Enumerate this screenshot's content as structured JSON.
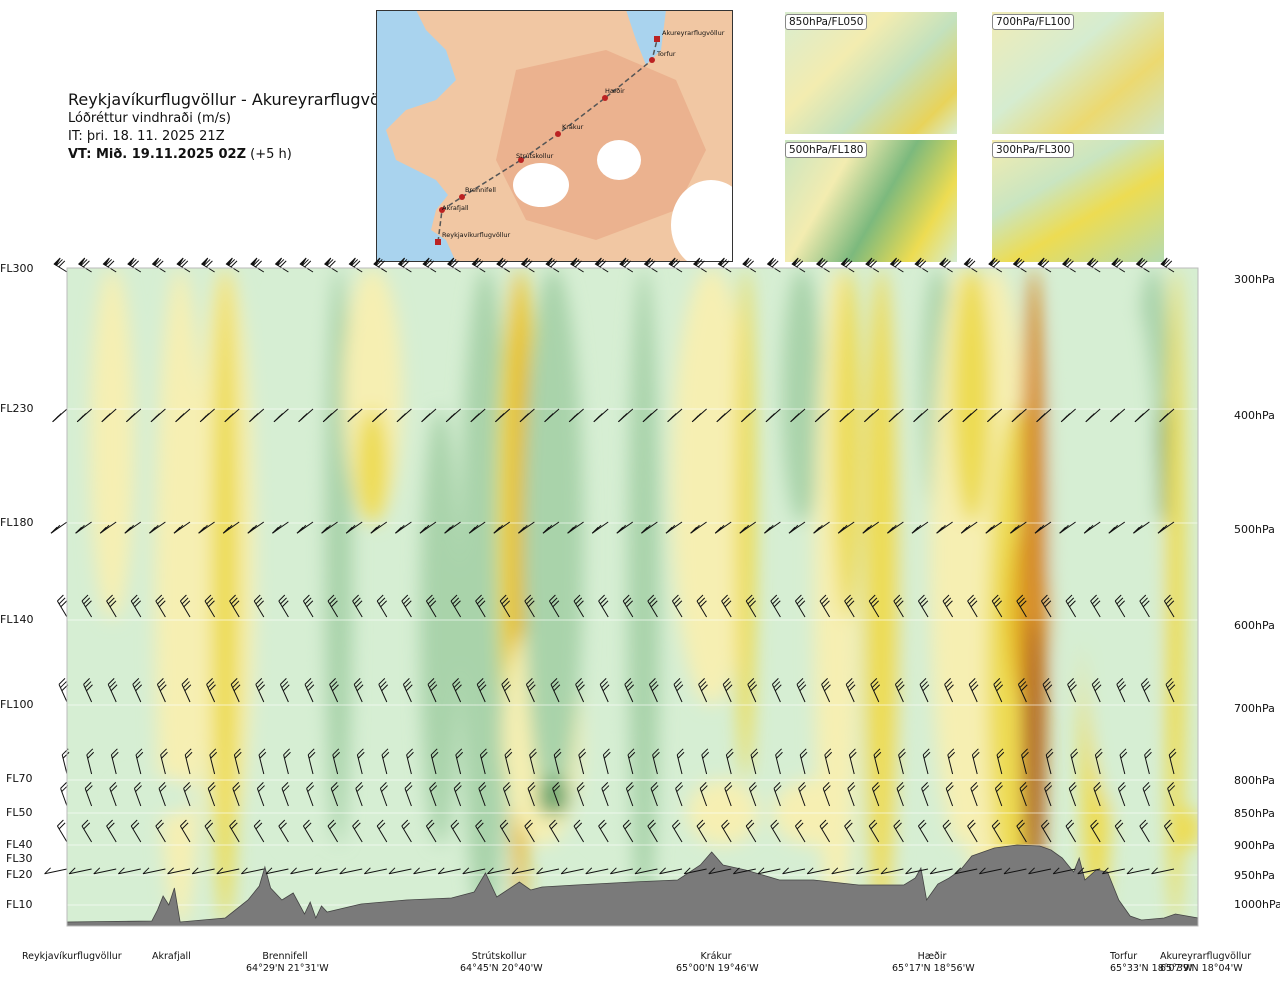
{
  "header": {
    "route": "Reykjavíkurflugvöllur - Akureyrarflugvöllur",
    "parameter": "Lóðréttur vindhraði (m/s)",
    "initial_time": "IT: þri. 18. 11. 2025 21Z",
    "valid_time_bold": "VT: Mið. 19.11.2025 02Z",
    "valid_time_offset": "(+5 h)"
  },
  "map_labels": [
    {
      "name": "Akureyrarflugvöllur"
    },
    {
      "name": "Torfur"
    },
    {
      "name": "Hæðir"
    },
    {
      "name": "Krákur"
    },
    {
      "name": "Strútskollur"
    },
    {
      "name": "Brennifell"
    },
    {
      "name": "Akrafjall"
    },
    {
      "name": "Reykjavíkurflugvöllur"
    }
  ],
  "insets": [
    {
      "label": "850hPa/FL050"
    },
    {
      "label": "700hPa/FL100"
    },
    {
      "label": "500hPa/FL180"
    },
    {
      "label": "300hPa/FL300"
    }
  ],
  "chart_data": {
    "type": "heatmap",
    "title": "Reykjavíkurflugvöllur - Akureyrarflugvöllur",
    "variable": "Lóðréttur vindhraði (m/s)",
    "y_levels_hpa": [
      300,
      400,
      500,
      600,
      700,
      800,
      850,
      900,
      950,
      1000
    ],
    "y_labels_right": [
      "300hPa",
      "400hPa",
      "500hPa",
      "600hPa",
      "700hPa",
      "800hPa",
      "850hPa",
      "900hPa",
      "950hPa",
      "1000hPa"
    ],
    "y_labels_left": [
      "FL300",
      "FL230",
      "FL180",
      "FL140",
      "FL100",
      "FL70",
      "FL50",
      "FL40",
      "FL30",
      "FL20",
      "FL10"
    ],
    "x_waypoints": [
      {
        "name": "Reykjavíkurflugvöllur",
        "coord": "",
        "dist": 0.0
      },
      {
        "name": "Akrafjall",
        "coord": "",
        "dist": 0.09
      },
      {
        "name": "Brennifell",
        "coord": "64°29'N 21°31'W",
        "dist": 0.19
      },
      {
        "name": "Strútskollur",
        "coord": "64°45'N 20°40'W",
        "dist": 0.39
      },
      {
        "name": "Krákur",
        "coord": "65°00'N 19°46'W",
        "dist": 0.57
      },
      {
        "name": "Hæðir",
        "coord": "65°17'N 18°56'W",
        "dist": 0.75
      },
      {
        "name": "Torfur",
        "coord": "65°33'N 18°07'W",
        "dist": 0.94
      },
      {
        "name": "Akureyrarflugvöllur",
        "coord": "65°39'N 18°04'W",
        "dist": 0.99
      }
    ],
    "color_scale": {
      "strong_down": "#6aa66f",
      "moderate_down": "#a9d3aa",
      "weak_down": "#d6eed3",
      "neutral": "#f3f9ee",
      "weak_up": "#f6efb2",
      "moderate_up": "#eddc52",
      "strong_up": "#e7bb1a",
      "very_strong_up": "#d58a2a",
      "extreme_up": "#a55a22"
    },
    "upward_core": {
      "dist": 0.86,
      "level_hpa": 600
    },
    "terrain_color": "#7a7a7a"
  }
}
